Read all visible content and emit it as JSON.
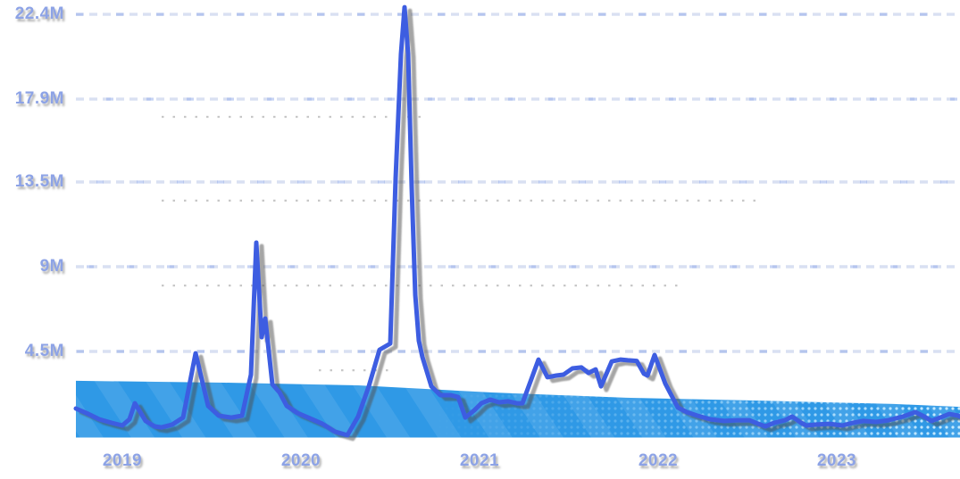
{
  "page": {
    "background": "#ffffff",
    "title": ""
  },
  "chart_data": {
    "type": "line",
    "title": "",
    "xlabel": "",
    "ylabel": "",
    "legend": "none",
    "x_axis": {
      "tick_labels": [
        "2019",
        "2020",
        "2021",
        "2022",
        "2023"
      ],
      "tick_values": [
        2019,
        2020,
        2021,
        2022,
        2023
      ],
      "range": [
        2018.74,
        2023.69
      ],
      "grid": false
    },
    "y_axis": {
      "tick_labels": [
        "22.4M",
        "17.9M",
        "13.5M",
        "9M",
        "4.5M"
      ],
      "tick_values": [
        22.4,
        17.9,
        13.5,
        9,
        4.5
      ],
      "unit": "M",
      "range": [
        0,
        23.3
      ],
      "grid": true,
      "grid_style": "dashed"
    },
    "series": [
      {
        "name": "primary-line",
        "type": "line",
        "color": "#3c5de1",
        "stroke_width": 5,
        "points": [
          [
            2018.74,
            1.47
          ],
          [
            2018.81,
            1.18
          ],
          [
            2018.87,
            0.9
          ],
          [
            2018.94,
            0.71
          ],
          [
            2019.0,
            0.57
          ],
          [
            2019.04,
            0.9
          ],
          [
            2019.07,
            1.75
          ],
          [
            2019.13,
            0.81
          ],
          [
            2019.18,
            0.52
          ],
          [
            2019.22,
            0.47
          ],
          [
            2019.28,
            0.62
          ],
          [
            2019.34,
            0.99
          ],
          [
            2019.41,
            4.4
          ],
          [
            2019.48,
            1.61
          ],
          [
            2019.54,
            1.09
          ],
          [
            2019.61,
            0.99
          ],
          [
            2019.67,
            1.09
          ],
          [
            2019.72,
            3.27
          ],
          [
            2019.75,
            10.28
          ],
          [
            2019.78,
            5.26
          ],
          [
            2019.8,
            6.25
          ],
          [
            2019.84,
            2.75
          ],
          [
            2019.88,
            2.32
          ],
          [
            2019.92,
            1.61
          ],
          [
            2019.98,
            1.23
          ],
          [
            2020.04,
            0.99
          ],
          [
            2020.12,
            0.66
          ],
          [
            2020.19,
            0.24
          ],
          [
            2020.26,
            0.05
          ],
          [
            2020.32,
            1.04
          ],
          [
            2020.38,
            2.65
          ],
          [
            2020.44,
            4.59
          ],
          [
            2020.5,
            4.92
          ],
          [
            2020.53,
            13.7
          ],
          [
            2020.56,
            20.3
          ],
          [
            2020.58,
            22.78
          ],
          [
            2020.6,
            20.3
          ],
          [
            2020.62,
            13.2
          ],
          [
            2020.64,
            7.5
          ],
          [
            2020.66,
            5.07
          ],
          [
            2020.68,
            4.2
          ],
          [
            2020.73,
            2.65
          ],
          [
            2020.78,
            2.18
          ],
          [
            2020.84,
            2.18
          ],
          [
            2020.88,
            2.08
          ],
          [
            2020.92,
            0.99
          ],
          [
            2020.97,
            1.37
          ],
          [
            2021.01,
            1.75
          ],
          [
            2021.06,
            1.94
          ],
          [
            2021.11,
            1.8
          ],
          [
            2021.16,
            1.85
          ],
          [
            2021.21,
            1.75
          ],
          [
            2021.24,
            1.75
          ],
          [
            2021.29,
            3.03
          ],
          [
            2021.33,
            4.07
          ],
          [
            2021.38,
            3.13
          ],
          [
            2021.43,
            3.22
          ],
          [
            2021.47,
            3.27
          ],
          [
            2021.52,
            3.6
          ],
          [
            2021.57,
            3.65
          ],
          [
            2021.61,
            3.36
          ],
          [
            2021.65,
            3.55
          ],
          [
            2021.68,
            2.65
          ],
          [
            2021.74,
            3.97
          ],
          [
            2021.79,
            4.07
          ],
          [
            2021.83,
            4.03
          ],
          [
            2021.88,
            4.0
          ],
          [
            2021.92,
            3.32
          ],
          [
            2021.94,
            3.22
          ],
          [
            2021.98,
            4.31
          ],
          [
            2022.04,
            2.79
          ],
          [
            2022.11,
            1.52
          ],
          [
            2022.16,
            1.28
          ],
          [
            2022.22,
            1.09
          ],
          [
            2022.29,
            0.9
          ],
          [
            2022.37,
            0.81
          ],
          [
            2022.44,
            0.85
          ],
          [
            2022.51,
            0.85
          ],
          [
            2022.56,
            0.66
          ],
          [
            2022.6,
            0.52
          ],
          [
            2022.65,
            0.71
          ],
          [
            2022.71,
            0.85
          ],
          [
            2022.75,
            1.04
          ],
          [
            2022.8,
            0.71
          ],
          [
            2022.83,
            0.57
          ],
          [
            2022.89,
            0.62
          ],
          [
            2022.96,
            0.66
          ],
          [
            2023.03,
            0.57
          ],
          [
            2023.09,
            0.71
          ],
          [
            2023.15,
            0.81
          ],
          [
            2023.22,
            0.76
          ],
          [
            2023.29,
            0.85
          ],
          [
            2023.37,
            1.04
          ],
          [
            2023.44,
            1.28
          ],
          [
            2023.49,
            1.04
          ],
          [
            2023.53,
            0.81
          ],
          [
            2023.58,
            0.99
          ],
          [
            2023.63,
            1.18
          ],
          [
            2023.68,
            1.09
          ],
          [
            2023.69,
            1.04
          ]
        ]
      },
      {
        "name": "baseline-band",
        "type": "area",
        "color": "#2f99e6",
        "hatch": true,
        "halftone_fade_right": true,
        "points": [
          [
            2018.74,
            2.94
          ],
          [
            2019.57,
            2.84
          ],
          [
            2020.32,
            2.7
          ],
          [
            2021.07,
            2.32
          ],
          [
            2021.82,
            2.04
          ],
          [
            2022.57,
            1.89
          ],
          [
            2023.32,
            1.71
          ],
          [
            2023.69,
            1.56
          ]
        ]
      }
    ],
    "minor_dotted_rows": [
      {
        "y": 16.96,
        "x1": 2019.22,
        "x2": 2020.7
      },
      {
        "y": 12.51,
        "x1": 2019.22,
        "x2": 2022.57
      },
      {
        "y": 8.0,
        "x1": 2019.22,
        "x2": 2022.14
      },
      {
        "y": 3.5,
        "x1": 2020.1,
        "x2": 2020.52
      }
    ]
  },
  "colors": {
    "grid": "#d9e0f2",
    "grid_accent": "#93acec",
    "axis_label": "#8da3e6",
    "line": "#3c5de1",
    "band": "#2f99e6",
    "band_hatch": "rgba(255,255,255,0.09)",
    "halftone_dot": "#c9ecff",
    "line_shadow": "#4a4a4a",
    "minor_dot": "#3a3a3a"
  }
}
